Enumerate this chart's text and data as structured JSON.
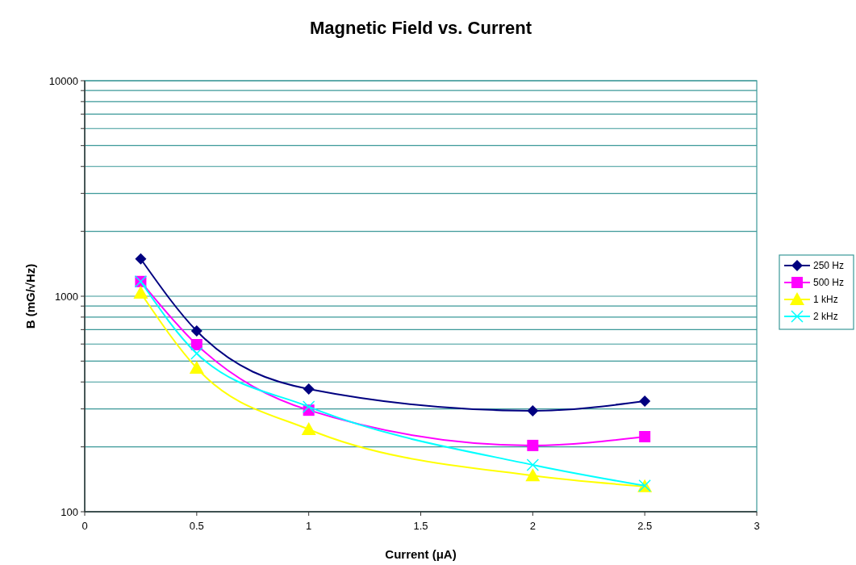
{
  "chart_data": {
    "type": "line",
    "title": "Magnetic Field vs. Current",
    "xlabel": "Current (μA)",
    "ylabel": "B (mG/√Hz)",
    "x": [
      0.25,
      0.5,
      1,
      2,
      2.5
    ],
    "xlim": [
      0,
      3
    ],
    "xticks": [
      0,
      0.5,
      1,
      1.5,
      2,
      2.5,
      3
    ],
    "ylim": [
      100,
      10000
    ],
    "log": "y",
    "yticks": [
      100,
      {
        "value": 200,
        "label": null
      },
      {
        "value": 300,
        "label": null
      },
      {
        "value": 400,
        "label": null
      },
      {
        "value": 500,
        "label": null
      },
      {
        "value": 600,
        "label": null
      },
      {
        "value": 700,
        "label": null
      },
      {
        "value": 800,
        "label": null
      },
      {
        "value": 900,
        "label": null
      },
      1000,
      {
        "value": 2000,
        "label": null
      },
      {
        "value": 3000,
        "label": null
      },
      {
        "value": 4000,
        "label": null
      },
      {
        "value": 5000,
        "label": null
      },
      {
        "value": 6000,
        "label": null
      },
      {
        "value": 7000,
        "label": null
      },
      {
        "value": 8000,
        "label": null
      },
      {
        "value": 9000,
        "label": null
      },
      10000
    ],
    "grid": "y",
    "legend": "right",
    "series": [
      {
        "name": "250 Hz",
        "color": "#000080",
        "marker": "diamond",
        "values": [
          1490,
          690,
          371,
          294,
          326
        ]
      },
      {
        "name": "500 Hz",
        "color": "#ff00ff",
        "marker": "square",
        "values": [
          1170,
          596,
          296,
          203,
          223
        ]
      },
      {
        "name": "1 kHz",
        "color": "#ffff00",
        "marker": "triangle",
        "values": [
          1035,
          464,
          241,
          147,
          131
        ]
      },
      {
        "name": "2 kHz",
        "color": "#00ffff",
        "marker": "cross",
        "values": [
          1170,
          542,
          307,
          165,
          132
        ]
      }
    ]
  }
}
